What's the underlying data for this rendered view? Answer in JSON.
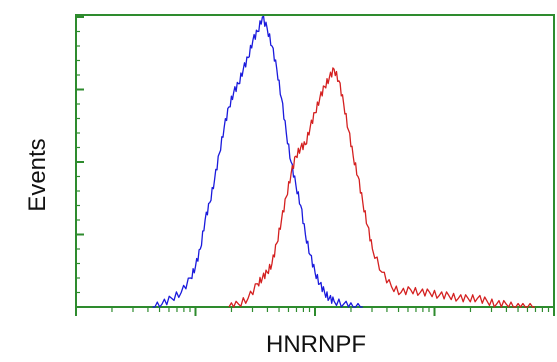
{
  "chart_data": {
    "type": "line",
    "title": "",
    "xlabel": "HNRNPF",
    "ylabel": "Events",
    "xlim": [
      0,
      100
    ],
    "ylim": [
      0,
      100
    ],
    "x_scale": "log",
    "grid": false,
    "legend": "none",
    "series": [
      {
        "color": "#1a1adc",
        "x": [
          16,
          18,
          20,
          22,
          24,
          25,
          26,
          27,
          28,
          29,
          30,
          31,
          32,
          33,
          34,
          35,
          36,
          37,
          38,
          39,
          40,
          41,
          42,
          43,
          44,
          45,
          46,
          47,
          48,
          49,
          50,
          51,
          52,
          53,
          54,
          56,
          58,
          60
        ],
        "y": [
          0,
          1,
          3,
          5,
          10,
          14,
          20,
          30,
          36,
          44,
          53,
          62,
          69,
          74,
          77,
          82,
          86,
          92,
          95,
          100,
          96,
          90,
          82,
          72,
          60,
          50,
          42,
          35,
          25,
          18,
          12,
          8,
          5,
          3,
          2,
          1,
          0,
          0
        ]
      },
      {
        "color": "#d42020",
        "x": [
          32,
          34,
          36,
          38,
          39,
          40,
          41,
          42,
          43,
          44,
          45,
          46,
          47,
          48,
          49,
          50,
          51,
          52,
          53,
          54,
          55,
          56,
          57,
          58,
          59,
          60,
          61,
          62,
          64,
          66,
          68,
          70,
          72,
          74,
          76,
          78,
          80,
          82,
          84,
          86,
          88,
          90,
          92,
          94,
          96
        ],
        "y": [
          0,
          1,
          3,
          8,
          10,
          12,
          15,
          22,
          30,
          38,
          46,
          52,
          55,
          56,
          62,
          67,
          72,
          76,
          79,
          82,
          78,
          70,
          61,
          52,
          45,
          36,
          28,
          20,
          12,
          7,
          5,
          6,
          5,
          5,
          4,
          4,
          3,
          3,
          3,
          2,
          1,
          1,
          0,
          0,
          0
        ]
      }
    ]
  }
}
